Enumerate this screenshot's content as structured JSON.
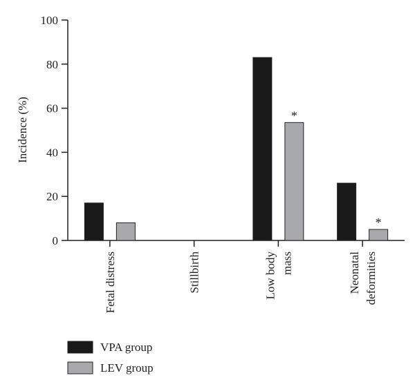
{
  "chart_data": {
    "type": "bar",
    "categories": [
      [
        "Fetal distress"
      ],
      [
        "Stillbirth"
      ],
      [
        "Low body",
        "mass"
      ],
      [
        "Neonatal",
        "deformities"
      ]
    ],
    "series": [
      {
        "name": "VPA group",
        "values": [
          17,
          0,
          83,
          26
        ],
        "color": "#1a1a1a"
      },
      {
        "name": "LEV group",
        "values": [
          8,
          0,
          53.5,
          5
        ],
        "color": "#a7a9ac"
      }
    ],
    "annotations": [
      {
        "series": 1,
        "category": 2,
        "text": "*"
      },
      {
        "series": 1,
        "category": 3,
        "text": "*"
      }
    ],
    "ylabel": "Incidence (%)",
    "xlabel": "",
    "ylim": [
      0,
      100
    ],
    "yticks": [
      0,
      20,
      40,
      60,
      80,
      100
    ],
    "grid": false,
    "legend_position": "bottom-left"
  }
}
